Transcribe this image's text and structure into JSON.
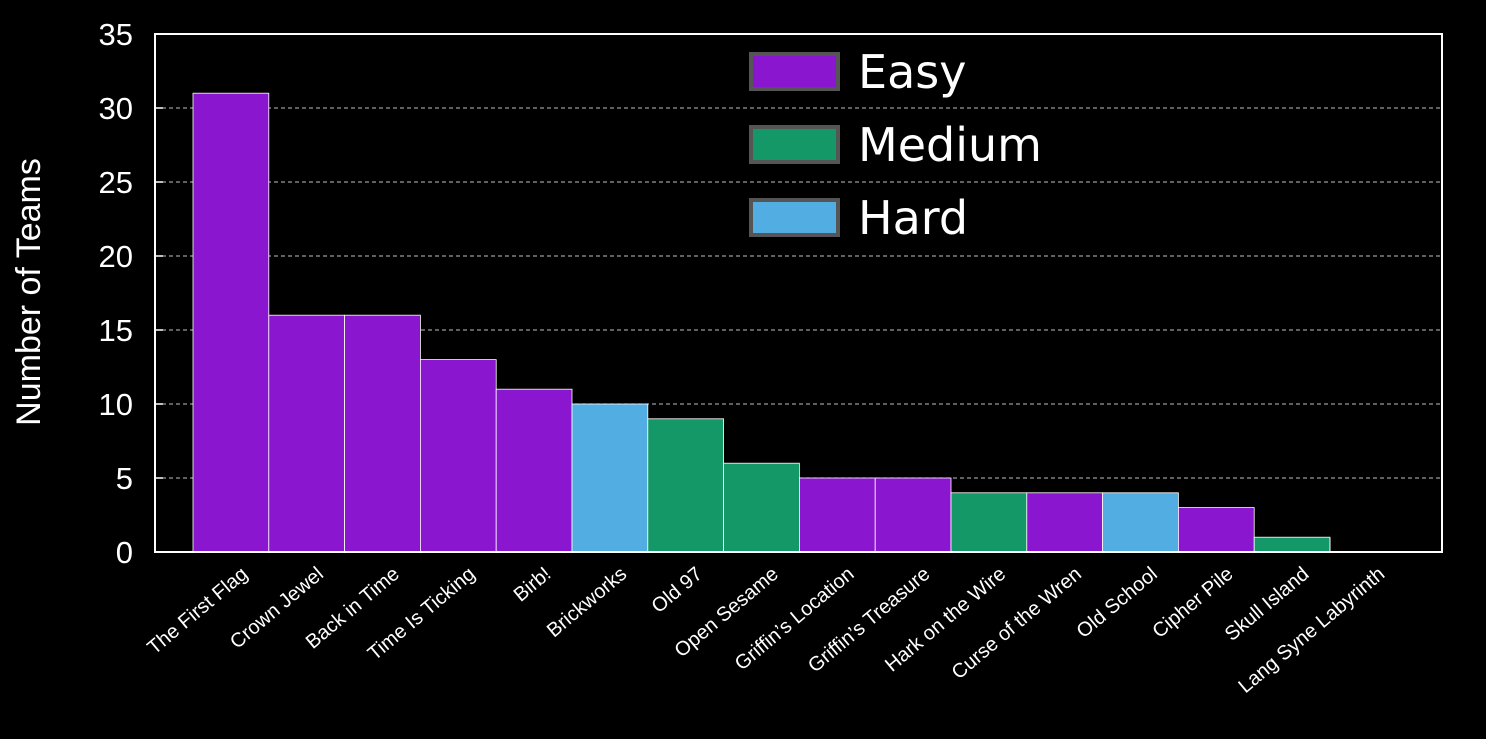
{
  "chart_data": {
    "type": "bar",
    "title": "",
    "xlabel": "",
    "ylabel": "Number of Teams",
    "ylim": [
      0,
      35
    ],
    "yticks": [
      0,
      5,
      10,
      15,
      20,
      25,
      30,
      35
    ],
    "grid": "horizontal dashed",
    "legend_placement": "top-center",
    "legend": [
      {
        "name": "Easy",
        "color": "#8a16d0"
      },
      {
        "name": "Medium",
        "color": "#149868"
      },
      {
        "name": "Hard",
        "color": "#52ade2"
      }
    ],
    "categories": [
      "The First Flag",
      "Crown Jewel",
      "Back in Time",
      "Time Is Ticking",
      "Birb!",
      "Brickworks",
      "Old 97",
      "Open Sesame",
      "Griffin’s Location",
      "Griffin’s Treasure",
      "Hark on the Wire",
      "Curse of the Wren",
      "Old School",
      "Cipher Pile",
      "Skull Island",
      "Lang Syne Labyrinth"
    ],
    "values": [
      31,
      16,
      16,
      13,
      11,
      10,
      9,
      6,
      5,
      5,
      4,
      4,
      4,
      3,
      1,
      0
    ],
    "difficulty": [
      "Easy",
      "Easy",
      "Easy",
      "Easy",
      "Easy",
      "Hard",
      "Medium",
      "Medium",
      "Easy",
      "Easy",
      "Medium",
      "Easy",
      "Hard",
      "Easy",
      "Medium",
      "Hard"
    ]
  }
}
